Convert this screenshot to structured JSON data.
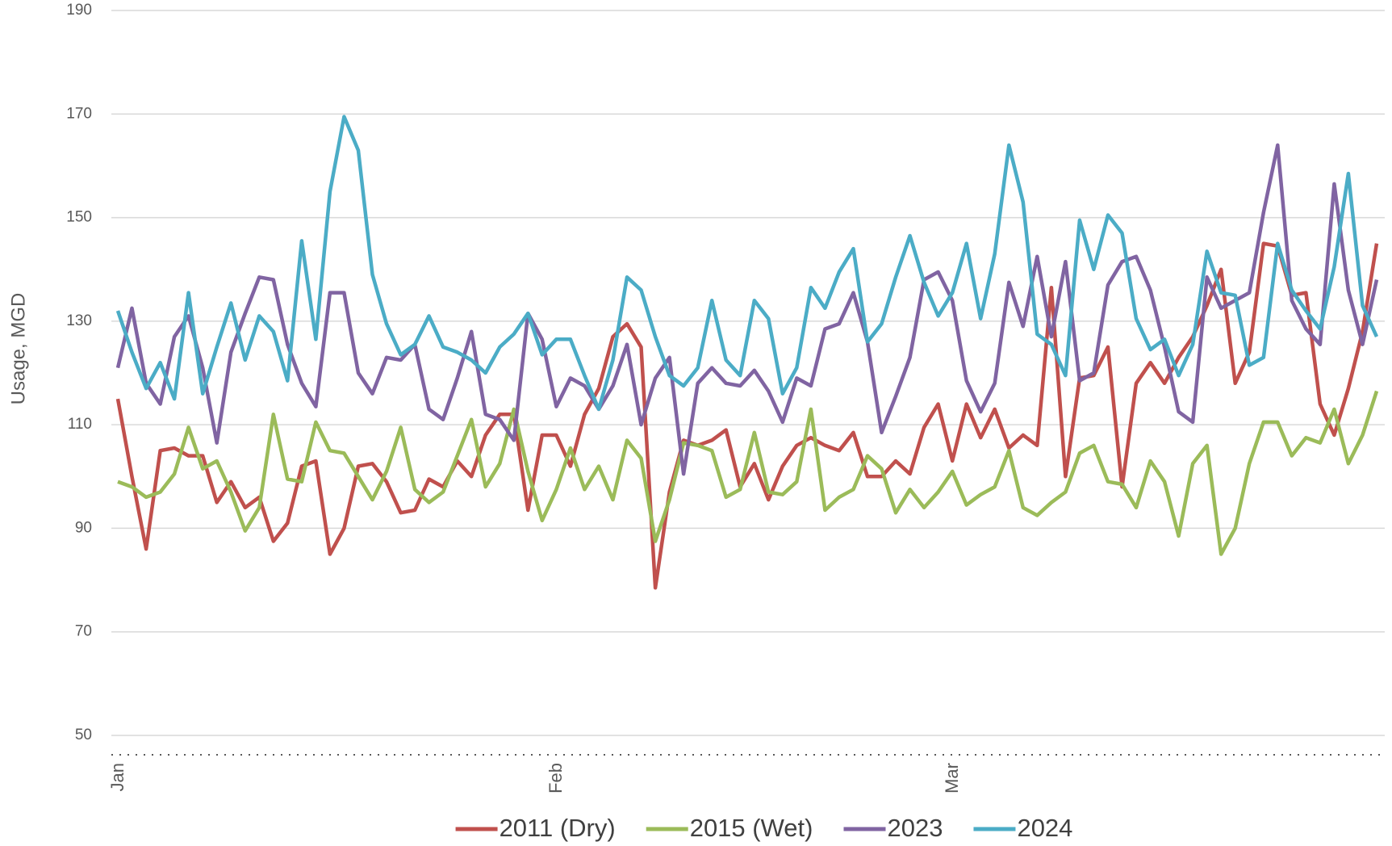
{
  "chart_data": {
    "type": "line",
    "y_label": "Usage, MGD",
    "categories": [
      "Jan",
      null,
      null,
      null,
      null,
      null,
      null,
      null,
      null,
      null,
      null,
      null,
      null,
      null,
      null,
      null,
      null,
      null,
      null,
      null,
      null,
      null,
      null,
      null,
      null,
      null,
      null,
      null,
      null,
      null,
      null,
      "Feb",
      null,
      null,
      null,
      null,
      null,
      null,
      null,
      null,
      null,
      null,
      null,
      null,
      null,
      null,
      null,
      null,
      null,
      null,
      null,
      null,
      null,
      null,
      null,
      null,
      null,
      null,
      null,
      "Mar",
      null,
      null,
      null,
      null,
      null,
      null,
      null,
      null,
      null,
      null,
      null,
      null,
      null,
      null,
      null,
      null,
      null,
      null,
      null,
      null,
      null,
      null,
      null,
      null,
      null,
      null,
      null,
      null,
      null,
      null
    ],
    "series": [
      {
        "name": "2011 (Dry)",
        "color": "#c0504d",
        "values": [
          115,
          100,
          86,
          105,
          105.5,
          104,
          104,
          95,
          99,
          94,
          96,
          87.5,
          91,
          102,
          103,
          85,
          90,
          102,
          102.5,
          99,
          93,
          93.5,
          99.5,
          98,
          103,
          100,
          108,
          112,
          112,
          93.5,
          108,
          108,
          102,
          112,
          117,
          127,
          129.5,
          125,
          78.5,
          97,
          107,
          106,
          107,
          109,
          98,
          102.5,
          95.5,
          102,
          106,
          107.5,
          106,
          105,
          108.5,
          100,
          100,
          103,
          100.5,
          109.5,
          114,
          103,
          114,
          107.5,
          113,
          105.5,
          108,
          106,
          136.5,
          100,
          119,
          119.5,
          125,
          98,
          118,
          122,
          118,
          123,
          127,
          133,
          140,
          118,
          124,
          145,
          144.5,
          135,
          135.5,
          114,
          108,
          117,
          128,
          145
        ]
      },
      {
        "name": "2015 (Wet)",
        "color": "#9bbb59",
        "values": [
          99,
          98,
          96,
          97,
          100.5,
          109.5,
          101.5,
          103,
          97,
          89.5,
          94,
          112,
          99.5,
          99,
          110.5,
          105,
          104.5,
          100,
          95.5,
          101,
          109.5,
          97.5,
          95,
          97,
          104,
          111,
          98,
          102.5,
          113,
          101,
          91.5,
          97.5,
          105.5,
          97.5,
          102,
          95.5,
          107,
          103.5,
          87.5,
          95.5,
          106.5,
          106,
          105,
          96,
          97.5,
          108.5,
          97,
          96.5,
          99,
          113,
          93.5,
          96,
          97.5,
          104,
          101.5,
          93,
          97.5,
          94,
          97,
          101,
          94.5,
          96.5,
          98,
          105,
          94,
          92.5,
          95,
          97,
          104.5,
          106,
          99,
          98.5,
          94,
          103,
          99,
          88.5,
          102.5,
          106,
          85,
          90,
          102.5,
          110.5,
          110.5,
          104,
          107.5,
          106.5,
          113,
          102.5,
          108,
          116.5
        ]
      },
      {
        "name": "2023",
        "color": "#8064a2",
        "values": [
          121,
          132.5,
          118,
          114,
          127,
          131,
          121,
          106.5,
          124,
          131.5,
          138.5,
          138,
          125.5,
          118,
          113.5,
          135.5,
          135.5,
          120,
          116,
          123,
          122.5,
          125.5,
          113,
          111,
          119,
          128,
          112,
          111,
          107,
          131.5,
          126.5,
          113.5,
          119,
          117.5,
          113,
          117.5,
          125.5,
          110,
          119,
          123,
          100.5,
          118,
          121,
          118,
          117.5,
          120.5,
          116.5,
          110.5,
          119,
          117.5,
          128.5,
          129.5,
          135.5,
          126,
          108.5,
          115.5,
          123,
          138,
          139.5,
          134,
          118.5,
          112.5,
          118,
          137.5,
          129,
          142.5,
          127,
          141.5,
          118.5,
          120,
          137,
          141.5,
          142.5,
          136,
          125,
          112.5,
          110.5,
          138.5,
          132.5,
          134,
          135.5,
          151,
          164,
          134,
          128.5,
          125.5,
          156.5,
          136,
          125.5,
          138
        ]
      },
      {
        "name": "2024",
        "color": "#4bacc6",
        "values": [
          132,
          124,
          117,
          122,
          115,
          135.5,
          116,
          125,
          133.5,
          122.5,
          131,
          128,
          118.5,
          145.5,
          126.5,
          155,
          169.5,
          163,
          139,
          129.5,
          123.5,
          125.5,
          131,
          125,
          124,
          122.5,
          120,
          125,
          127.5,
          131.5,
          123.5,
          126.5,
          126.5,
          119.5,
          113,
          122.5,
          138.5,
          136,
          127,
          119.5,
          117.5,
          121,
          134,
          122.5,
          119.5,
          134,
          130.5,
          116,
          121,
          136.5,
          132.5,
          139.5,
          144,
          126,
          129.5,
          138.5,
          146.5,
          137.5,
          131,
          135.5,
          145,
          130.5,
          143,
          164,
          153,
          127.5,
          125.5,
          119.5,
          149.5,
          140,
          150.5,
          147,
          130.5,
          124.5,
          126.5,
          119.5,
          125.5,
          143.5,
          135.5,
          135,
          121.5,
          123,
          145,
          136,
          132,
          128.5,
          140.5,
          158.5,
          133,
          127
        ]
      }
    ],
    "ylim": [
      50,
      190
    ],
    "yticks": [
      50,
      70,
      90,
      110,
      130,
      150,
      170,
      190
    ],
    "grid": true,
    "legend": "bottom"
  }
}
